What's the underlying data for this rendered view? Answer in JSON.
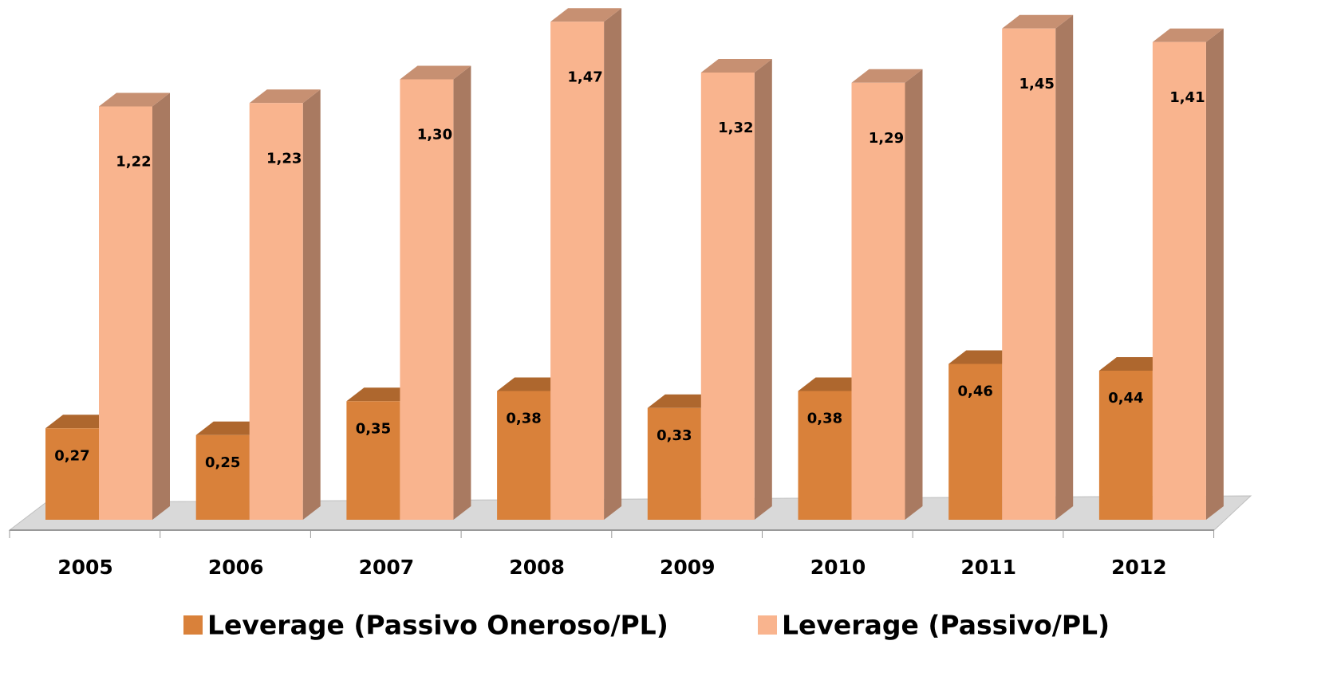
{
  "chart_data": {
    "type": "bar3d",
    "categories": [
      "2005",
      "2006",
      "2007",
      "2008",
      "2009",
      "2010",
      "2011",
      "2012"
    ],
    "series": [
      {
        "name": "Leverage (Passivo Oneroso/PL)",
        "color": "#d9813a",
        "values": [
          0.27,
          0.25,
          0.35,
          0.38,
          0.33,
          0.38,
          0.46,
          0.44
        ],
        "value_labels": [
          "0,27",
          "0,25",
          "0,35",
          "0,38",
          "0,33",
          "0,38",
          "0,46",
          "0,44"
        ]
      },
      {
        "name": "Leverage (Passivo/PL)",
        "color": "#f9b48e",
        "values": [
          1.22,
          1.23,
          1.3,
          1.47,
          1.32,
          1.29,
          1.45,
          1.41
        ],
        "value_labels": [
          "1,22",
          "1,23",
          "1,30",
          "1,47",
          "1,32",
          "1,29",
          "1,45",
          "1,41"
        ]
      }
    ],
    "legend": "bottom"
  }
}
